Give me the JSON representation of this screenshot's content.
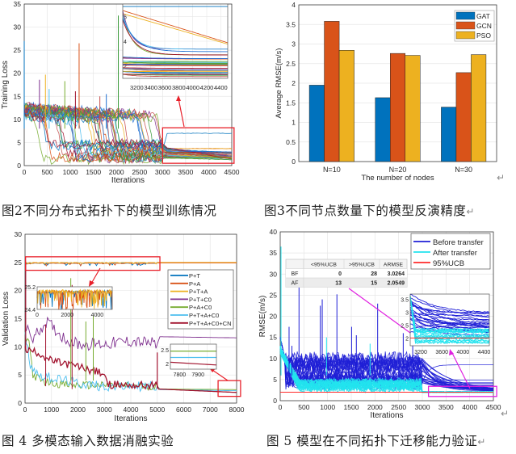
{
  "figures": [
    {
      "caption": "图2不同分布式拓扑下的模型训练情况",
      "chart_data": {
        "type": "line",
        "title": "",
        "xlabel": "Iterations",
        "ylabel": "Training Loss",
        "xlim": [
          0,
          4500
        ],
        "ylim": [
          0,
          35
        ],
        "xticks": [
          "0",
          "500",
          "1000",
          "1500",
          "2000",
          "2500",
          "3000",
          "3500",
          "4000",
          "4500"
        ],
        "yticks": [
          "0",
          "5",
          "10",
          "15",
          "20",
          "25",
          "30",
          "35"
        ],
        "grid": true,
        "description": "Many multi-colored training loss curves starting near 12 and converging to about 1.5-7 by iteration 4500",
        "series_summary": [
          {
            "name": "curve group",
            "start": 12,
            "plateau_3000": 5,
            "end_4500": 2
          },
          {
            "name": "highest curve",
            "start": 12,
            "end_4500": 7
          },
          {
            "name": "slow decay curves",
            "start_3000": 6.5,
            "end_4500": 3.7
          }
        ],
        "spike_values": [
          27,
          26.5,
          19.7,
          18.6,
          18.3,
          16.6,
          16.1,
          15.5,
          15,
          32.5
        ],
        "inset": {
          "xlim": [
            3000,
            4500
          ],
          "ylim": [
            1,
            7
          ],
          "xticks": [
            "3200",
            "3400",
            "3600",
            "3800",
            "4000",
            "4200",
            "4400"
          ],
          "yticks": [
            "2",
            "4",
            "6"
          ]
        },
        "zoom_box_color": "#e8202a"
      }
    },
    {
      "caption": "图3不同节点数量下的模型反演精度",
      "chart_data": {
        "type": "bar",
        "title": "",
        "xlabel": "The number of nodes",
        "ylabel": "Average RMSE(m/s)",
        "categories": [
          "N=10",
          "N=20",
          "N=30"
        ],
        "ylim": [
          0,
          4
        ],
        "yticks": [
          "0",
          "0.5",
          "1",
          "1.5",
          "2",
          "2.5",
          "3",
          "3.5",
          "4"
        ],
        "grid": true,
        "legend_position": "top-right",
        "series": [
          {
            "name": "GAT",
            "color": "#0072bd",
            "values": [
              1.95,
              1.63,
              1.39
            ]
          },
          {
            "name": "GCN",
            "color": "#d95319",
            "values": [
              3.58,
              2.76,
              2.27
            ]
          },
          {
            "name": "PSO",
            "color": "#edb120",
            "values": [
              2.84,
              2.71,
              2.73
            ]
          }
        ]
      }
    },
    {
      "caption": "图 4 多模态输入数据消融实验",
      "chart_data": {
        "type": "line",
        "title": "",
        "xlabel": "Iterations",
        "ylabel": "Validation Loss",
        "xlim": [
          0,
          8000
        ],
        "ylim": [
          0,
          30
        ],
        "xticks": [
          "0",
          "1000",
          "2000",
          "3000",
          "4000",
          "5000",
          "6000",
          "7000",
          "8000"
        ],
        "yticks": [
          "0",
          "5",
          "10",
          "15",
          "20",
          "25",
          "30"
        ],
        "grid": true,
        "legend_position": "right",
        "series": [
          {
            "name": "P+T",
            "color": "#0072bd",
            "x": [
              0,
              5000,
              8000
            ],
            "y": [
              24.9,
              24.9,
              24.9
            ]
          },
          {
            "name": "P+A",
            "color": "#d95319",
            "x": [
              0,
              5000,
              8000
            ],
            "y": [
              24.9,
              24.9,
              24.9
            ]
          },
          {
            "name": "P+T+A",
            "color": "#edb120",
            "x": [
              0,
              5000,
              8000
            ],
            "y": [
              25,
              25,
              25
            ]
          },
          {
            "name": "P+T+C0",
            "color": "#7e2f8e",
            "x": [
              0,
              300,
              800,
              1500,
              2000,
              3000,
              4000,
              5000,
              5100,
              8000
            ],
            "y": [
              13.5,
              11.5,
              14.5,
              11.5,
              10.5,
              10.5,
              11,
              10.5,
              11.8,
              11.6
            ]
          },
          {
            "name": "P+A+C0",
            "color": "#77ac30",
            "x": [
              0,
              150,
              300,
              600,
              1000,
              1600,
              5000,
              5100,
              8000
            ],
            "y": [
              12,
              11,
              5,
              4,
              3.6,
              3.2,
              3,
              2.5,
              2.4
            ]
          },
          {
            "name": "P+T+A+C0",
            "color": "#4dbeee",
            "x": [
              0,
              200,
              500,
              1000,
              2000,
              3000,
              5000,
              5100,
              8000
            ],
            "y": [
              12,
              7,
              5,
              4.5,
              3.5,
              3,
              3,
              2.4,
              2.2
            ]
          },
          {
            "name": "P+T+A+C0+CN",
            "color": "#a2142f",
            "x": [
              0,
              500,
              1000,
              2000,
              3000,
              3100,
              5000,
              5050,
              8000
            ],
            "y": [
              9.5,
              9,
              7.5,
              6.5,
              5.2,
              3.3,
              3.1,
              2.5,
              1.9
            ]
          }
        ],
        "spike_values": [
          22.2,
          14.5,
          15.5
        ],
        "inset_top": {
          "xlim": [
            0,
            5000
          ],
          "ylim": [
            24.4,
            25.2
          ],
          "xticks": [
            "0",
            "2000",
            "4000"
          ],
          "yticks": [
            "24.4",
            "25.2"
          ]
        },
        "inset_bottom": {
          "xlim": [
            7750,
            8000
          ],
          "ylim": [
            1.8,
            2.7
          ],
          "xticks": [
            "7800",
            "7900"
          ],
          "yticks": [
            "2",
            "2.5"
          ]
        },
        "zoom_box_color": "#e8202a"
      }
    },
    {
      "caption": "图 5 模型在不同拓扑下迁移能力验证",
      "chart_data": {
        "type": "line",
        "title": "",
        "xlabel": "Iterations",
        "ylabel": "RMSE(m/s)",
        "xlim": [
          0,
          4500
        ],
        "ylim": [
          0,
          40
        ],
        "xticks": [
          "0",
          "500",
          "1000",
          "1500",
          "2000",
          "2500",
          "3000",
          "3500",
          "4000",
          "4500"
        ],
        "yticks": [
          "0",
          "5",
          "10",
          "15",
          "20",
          "25",
          "30",
          "35",
          "40"
        ],
        "grid": true,
        "legend_position": "top-right",
        "series": [
          {
            "name": "Before transfer",
            "color": "#1f1fd6"
          },
          {
            "name": "After transfer",
            "color": "#22e3ee"
          },
          {
            "name": "95%UCB",
            "color": "#ff2a2a",
            "value": 2
          }
        ],
        "table": {
          "columns": [
            "",
            "<95%UCB",
            ">95%UCB",
            "ARMSE"
          ],
          "rows": [
            [
              "BF",
              "0",
              "28",
              "3.0264"
            ],
            [
              "AF",
              "13",
              "15",
              "2.0549"
            ]
          ]
        },
        "inset": {
          "xlim": [
            3000,
            4500
          ],
          "ylim": [
            1.7,
            3.7
          ],
          "xticks": [
            "3200",
            "3600",
            "4000",
            "4400"
          ],
          "yticks": [
            "2",
            "2.5",
            "3",
            "3.5"
          ]
        },
        "zoom_box_color": "#e020e0"
      }
    }
  ]
}
